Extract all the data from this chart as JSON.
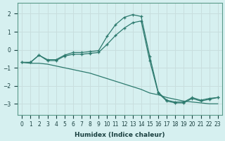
{
  "xlabel": "Humidex (Indice chaleur)",
  "ylabel": "",
  "bg_color": "#d6f0f0",
  "grid_color": "#c8dede",
  "line_color": "#2d7a6e",
  "xlim": [
    -0.5,
    23.5
  ],
  "ylim": [
    -3.6,
    2.6
  ],
  "yticks": [
    -3,
    -2,
    -1,
    0,
    1,
    2
  ],
  "line1_x": [
    0,
    1,
    2,
    3,
    4,
    5,
    6,
    7,
    8,
    9,
    10,
    11,
    12,
    13,
    14,
    15,
    16,
    17,
    18,
    19,
    20,
    21,
    22,
    23
  ],
  "line1_y": [
    -0.7,
    -0.7,
    -0.3,
    -0.55,
    -0.55,
    -0.3,
    -0.15,
    -0.15,
    -0.1,
    -0.05,
    0.75,
    1.4,
    1.8,
    1.95,
    1.85,
    -0.35,
    -2.35,
    -2.8,
    -2.9,
    -2.9,
    -2.65,
    -2.8,
    -2.7,
    -2.65
  ],
  "line2_x": [
    0,
    1,
    2,
    3,
    4,
    5,
    6,
    7,
    8,
    9,
    10,
    11,
    12,
    13,
    14,
    15,
    16,
    17,
    18,
    19,
    20,
    21,
    22,
    23
  ],
  "line2_y": [
    -0.7,
    -0.7,
    -0.3,
    -0.6,
    -0.6,
    -0.35,
    -0.25,
    -0.25,
    -0.2,
    -0.15,
    0.3,
    0.8,
    1.2,
    1.5,
    1.6,
    -0.6,
    -2.4,
    -2.85,
    -2.95,
    -2.95,
    -2.7,
    -2.85,
    -2.75,
    -2.65
  ],
  "line3_x": [
    0,
    1,
    2,
    3,
    4,
    5,
    6,
    7,
    8,
    9,
    10,
    11,
    12,
    13,
    14,
    15,
    16,
    17,
    18,
    19,
    20,
    21,
    22,
    23
  ],
  "line3_y": [
    -0.7,
    -0.75,
    -0.75,
    -0.8,
    -0.9,
    -1.0,
    -1.1,
    -1.2,
    -1.3,
    -1.45,
    -1.6,
    -1.75,
    -1.9,
    -2.05,
    -2.2,
    -2.4,
    -2.5,
    -2.65,
    -2.75,
    -2.85,
    -2.9,
    -2.95,
    -3.0,
    -3.0
  ]
}
